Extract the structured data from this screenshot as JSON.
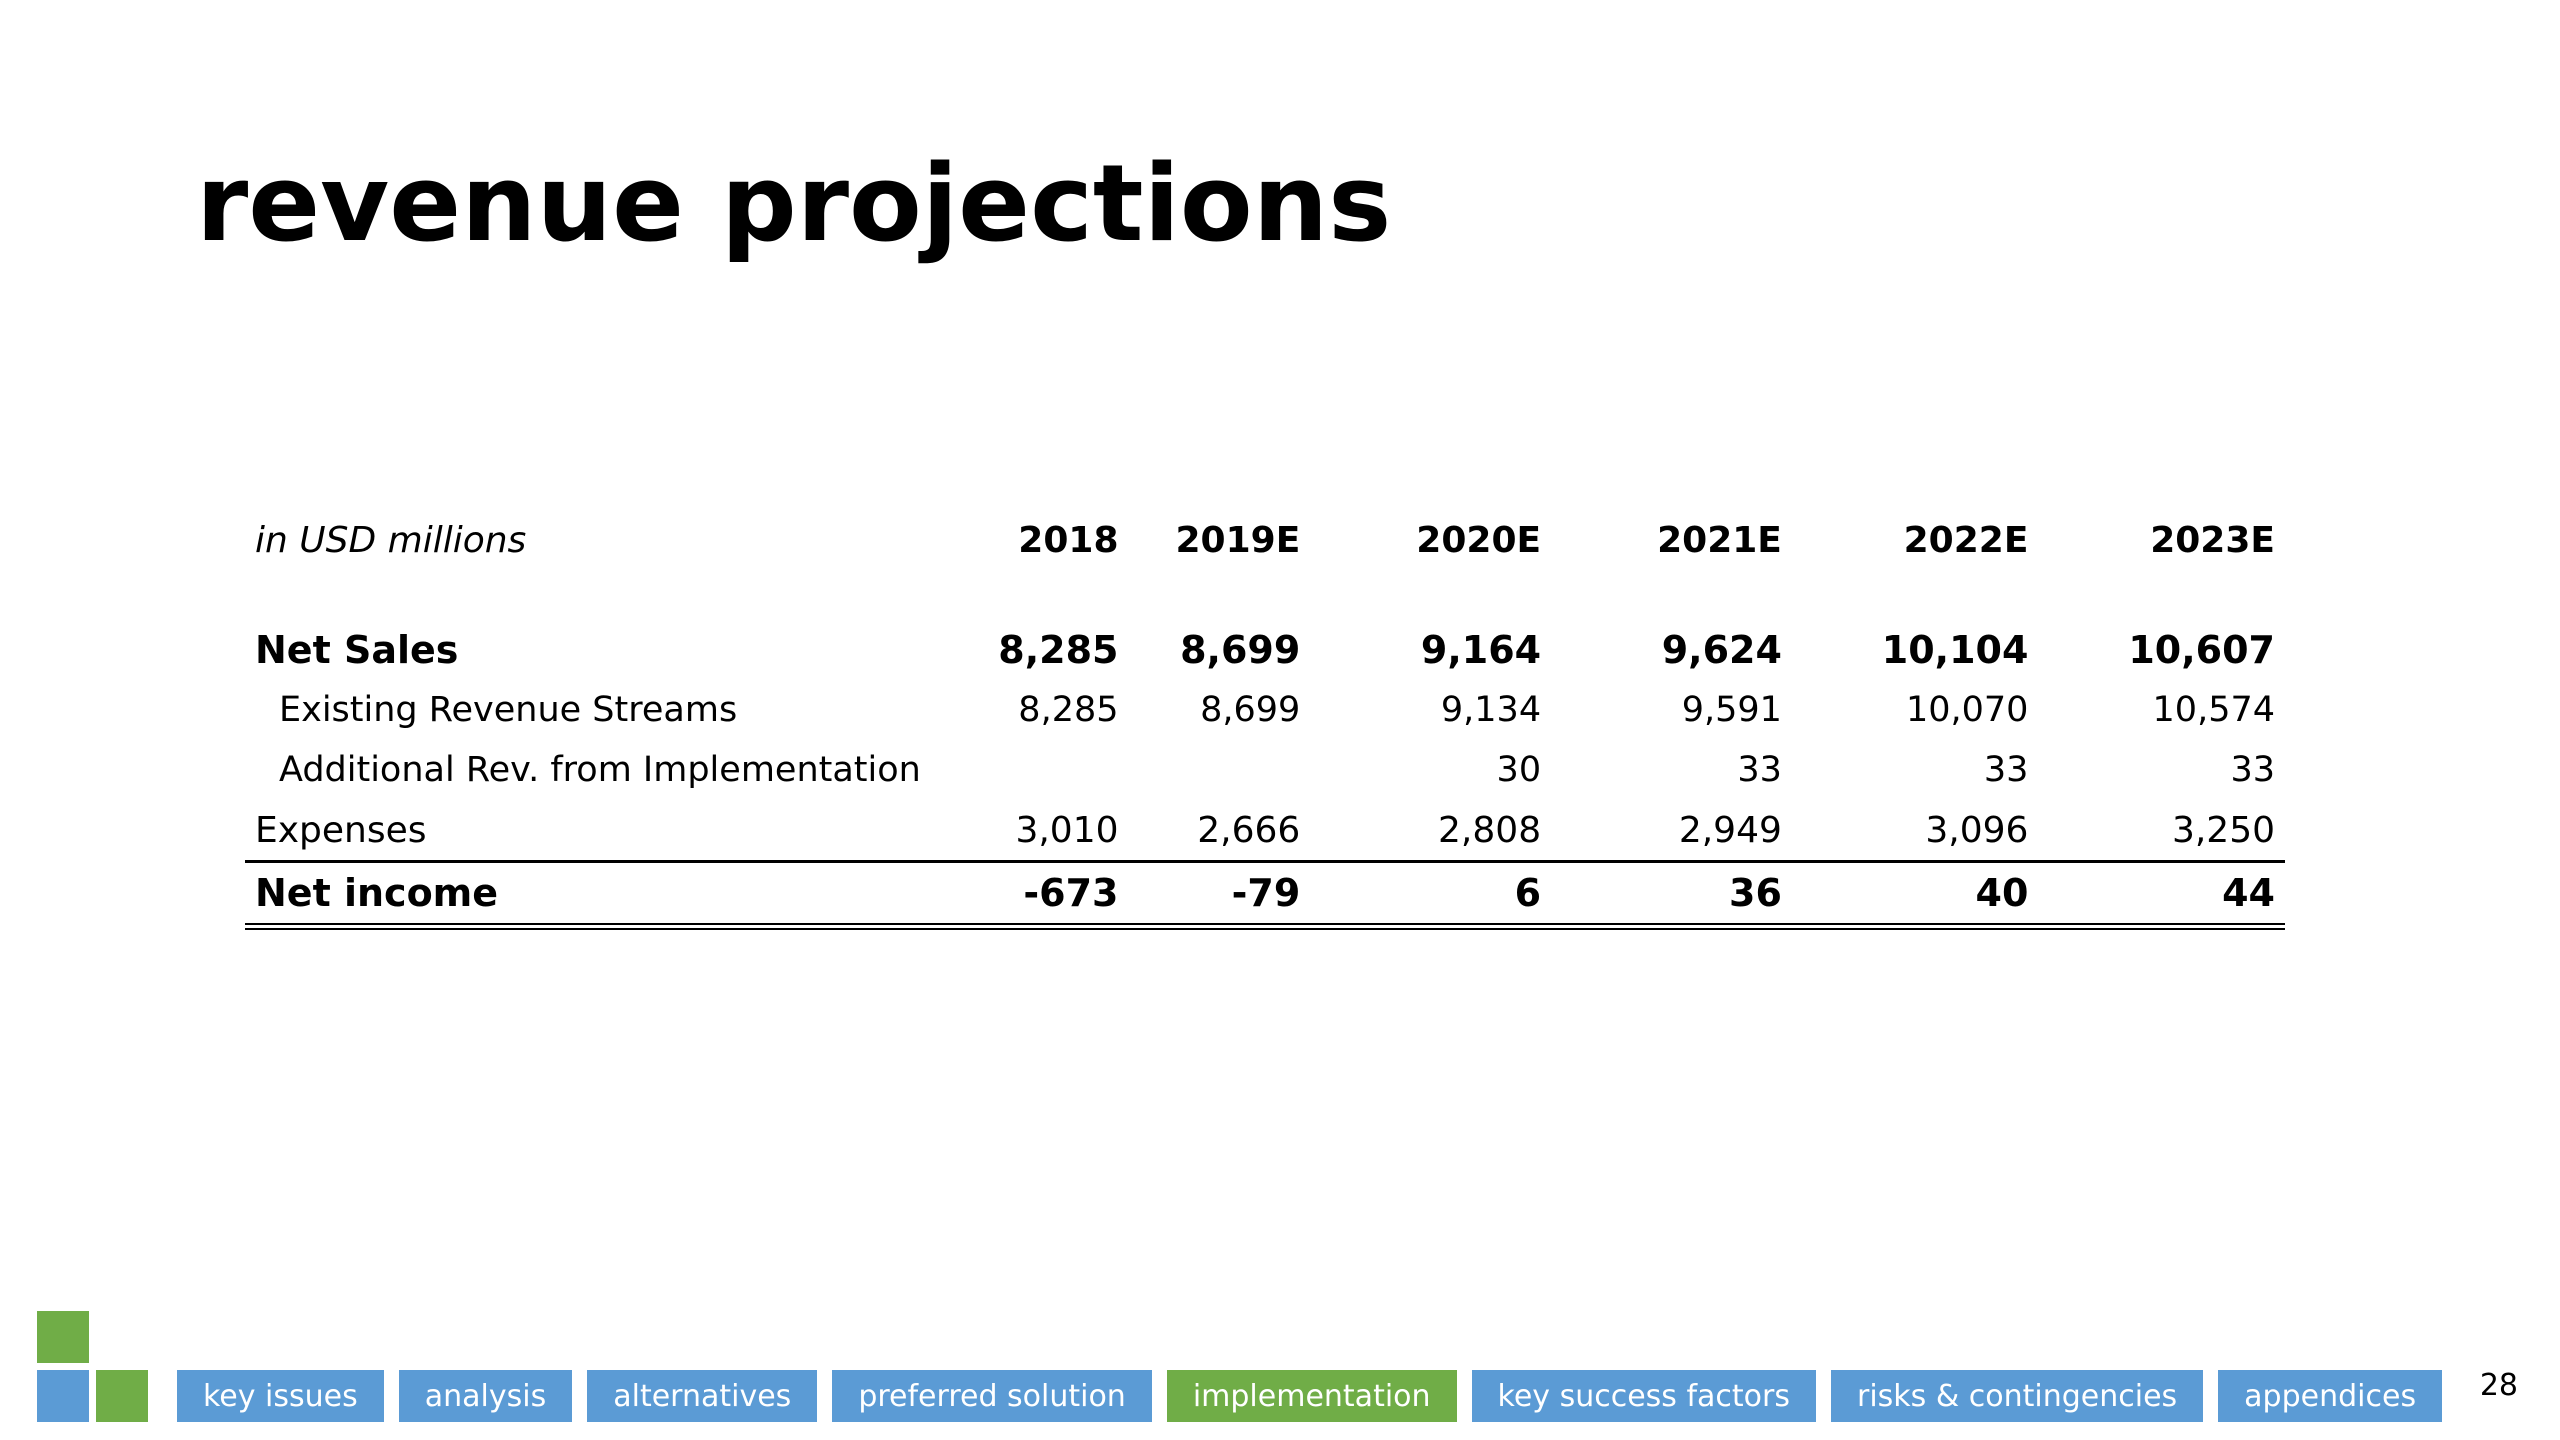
{
  "title": "revenue projections",
  "table": {
    "unit_label": "in USD millions",
    "years": [
      "2018",
      "2019E",
      "2020E",
      "2021E",
      "2022E",
      "2023E"
    ],
    "rows": [
      {
        "label": "Net Sales",
        "values": [
          "8,285",
          "8,699",
          "9,164",
          "9,624",
          "10,104",
          "10,607"
        ]
      },
      {
        "label": "Existing Revenue Streams",
        "values": [
          "8,285",
          "8,699",
          "9,134",
          "9,591",
          "10,070",
          "10,574"
        ]
      },
      {
        "label": "Additional Rev. from Implementation",
        "values": [
          "",
          "",
          "30",
          "33",
          "33",
          "33"
        ]
      },
      {
        "label": "Expenses",
        "values": [
          "3,010",
          "2,666",
          "2,808",
          "2,949",
          "3,096",
          "3,250"
        ]
      },
      {
        "label": "Net income",
        "values": [
          "-673",
          "-79",
          "6",
          "36",
          "40",
          "44"
        ]
      }
    ]
  },
  "nav": {
    "tabs": [
      {
        "label": "key issues",
        "active": false
      },
      {
        "label": "analysis",
        "active": false
      },
      {
        "label": "alternatives",
        "active": false
      },
      {
        "label": "preferred solution",
        "active": false
      },
      {
        "label": "implementation",
        "active": true
      },
      {
        "label": "key success factors",
        "active": false
      },
      {
        "label": "risks & contingencies",
        "active": false
      },
      {
        "label": "appendices",
        "active": false
      }
    ]
  },
  "page_number": "28",
  "colors": {
    "tab_blue": "#5b9bd5",
    "tab_green": "#70ad47",
    "text": "#000000"
  }
}
